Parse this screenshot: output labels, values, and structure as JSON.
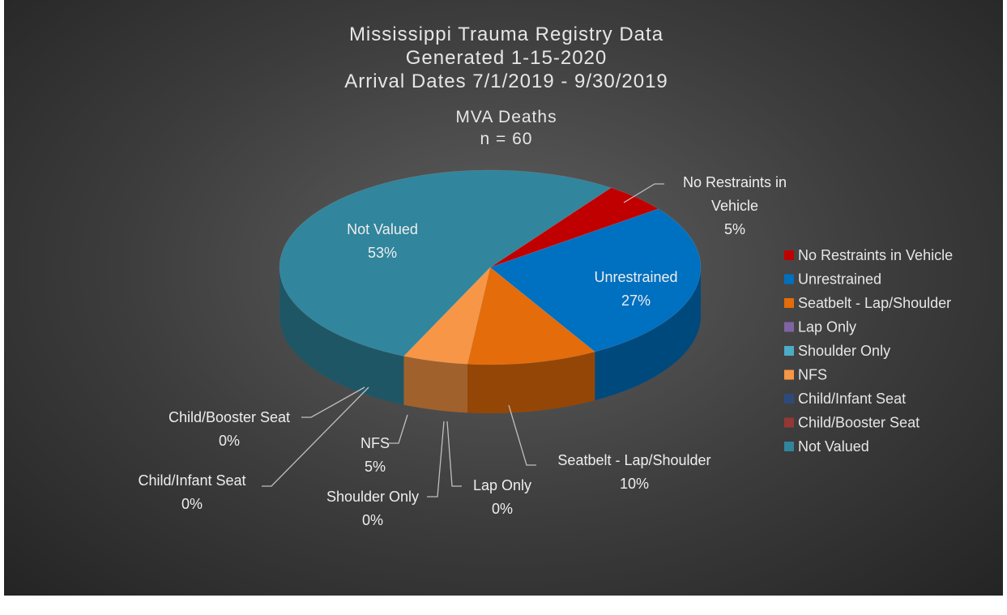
{
  "chart_data": {
    "type": "pie",
    "title": [
      "Mississippi Trauma Registry Data",
      "Generated 1-15-2020",
      "Arrival Dates 7/1/2019 - 9/30/2019"
    ],
    "subtitle": [
      "MVA Deaths",
      "n = 60"
    ],
    "categories": [
      "No Restraints in Vehicle",
      "Unrestrained",
      "Seatbelt - Lap/Shoulder",
      "Lap Only",
      "Shoulder Only",
      "NFS",
      "Child/Infant Seat",
      "Child/Booster Seat",
      "Not Valued"
    ],
    "values": [
      5,
      27,
      10,
      0,
      0,
      5,
      0,
      0,
      53
    ],
    "value_labels": [
      "5%",
      "27%",
      "10%",
      "0%",
      "0%",
      "5%",
      "0%",
      "0%",
      "53%"
    ],
    "colors": [
      "#c00000",
      "#0070c0",
      "#e46c0a",
      "#8064a2",
      "#4bacc6",
      "#f79646",
      "#2e4a7a",
      "#953735",
      "#31859c"
    ],
    "legend": "right"
  }
}
